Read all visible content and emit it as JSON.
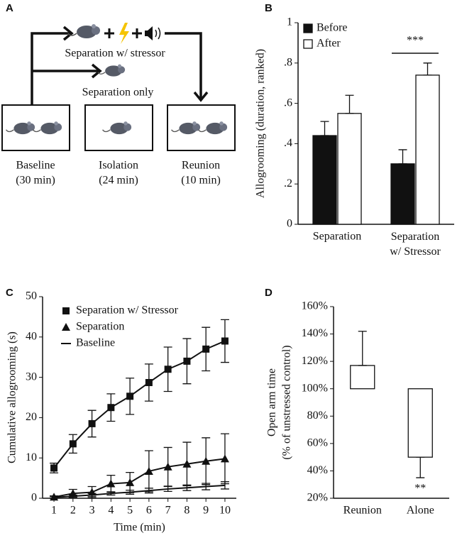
{
  "diagram": {
    "panel_label": "A",
    "top_label": "Separation w/ stressor",
    "middle_label": "Separation only",
    "stages": [
      "Baseline\n(30 min)",
      "Isolation\n(24 min)",
      "Reunion\n(10 min)"
    ]
  },
  "chart_data": [
    {
      "type": "bar",
      "panel_label": "B",
      "ylabel": "Allogrooming (duration, ranked)",
      "categories": [
        "Separation",
        "Separation\nw/ Stressor"
      ],
      "series": [
        {
          "name": "Before",
          "color": "#111111",
          "values": [
            0.44,
            0.3
          ],
          "errors": [
            0.07,
            0.07
          ]
        },
        {
          "name": "After",
          "color": "#ffffff",
          "values": [
            0.55,
            0.74
          ],
          "errors": [
            0.09,
            0.06
          ]
        }
      ],
      "ylim": [
        0,
        1
      ],
      "yticks": [
        0,
        {
          "value": 0.2,
          "label": ".2"
        },
        {
          "value": 0.4,
          "label": ".4"
        },
        {
          "value": 0.6,
          "label": ".6"
        },
        {
          "value": 0.8,
          "label": ".8"
        },
        1
      ],
      "legend": "upper left",
      "annotation": "***"
    },
    {
      "type": "line",
      "panel_label": "C",
      "xlabel": "Time (min)",
      "ylabel": "Cumulative allogrooming (s)",
      "x": [
        1,
        2,
        3,
        4,
        5,
        6,
        7,
        8,
        9,
        10
      ],
      "series": [
        {
          "name": "Separation w/ Stressor",
          "color": "#111111",
          "marker": "square",
          "values": [
            7.5,
            13.5,
            18.5,
            22.5,
            25.3,
            28.7,
            32,
            34,
            37,
            39
          ],
          "errors": [
            1.2,
            2.3,
            3.3,
            3.4,
            4.5,
            4.6,
            5.5,
            5.6,
            5.4,
            5.3
          ]
        },
        {
          "name": "Separation",
          "color": "#111111",
          "marker": "triangle",
          "values": [
            0.3,
            1.2,
            1.5,
            3.6,
            3.9,
            6.7,
            7.8,
            8.5,
            9.2,
            9.8
          ],
          "errors": [
            0.3,
            1.0,
            1.4,
            2.1,
            2.5,
            5.1,
            4.8,
            5.4,
            5.8,
            6.2
          ]
        },
        {
          "name": "Baseline",
          "color": "#111111",
          "marker": "none",
          "values": [
            0.2,
            0.5,
            0.8,
            1.2,
            1.5,
            1.9,
            2.3,
            2.6,
            2.9,
            3.2
          ],
          "errors": [
            0.2,
            0.3,
            0.4,
            0.4,
            0.5,
            0.6,
            0.6,
            0.7,
            0.8,
            0.9
          ]
        }
      ],
      "xlim": [
        0.4,
        10.6
      ],
      "xticks": [
        1,
        2,
        3,
        4,
        5,
        6,
        7,
        8,
        9,
        10
      ],
      "ylim": [
        0,
        50
      ],
      "yticks": [
        0,
        10,
        20,
        30,
        40,
        50
      ],
      "legend": "upper left"
    },
    {
      "type": "bar",
      "panel_label": "D",
      "ylabel": "Open arm time\n(% of unstressed control)",
      "categories": [
        "Reunion",
        "Alone"
      ],
      "series": [
        {
          "color": "#ffffff",
          "values": [
            117,
            50
          ],
          "errors": [
            25,
            15
          ]
        }
      ],
      "bar_base": 100,
      "ylim": [
        20,
        160
      ],
      "yticks": [
        {
          "value": 20,
          "label": "20%"
        },
        {
          "value": 40,
          "label": "40%"
        },
        {
          "value": 60,
          "label": "60%"
        },
        {
          "value": 80,
          "label": "80%"
        },
        {
          "value": 100,
          "label": "100%"
        },
        {
          "value": 120,
          "label": "120%"
        },
        {
          "value": 140,
          "label": "140%"
        },
        {
          "value": 160,
          "label": "160%"
        }
      ],
      "annotation": "**"
    }
  ]
}
